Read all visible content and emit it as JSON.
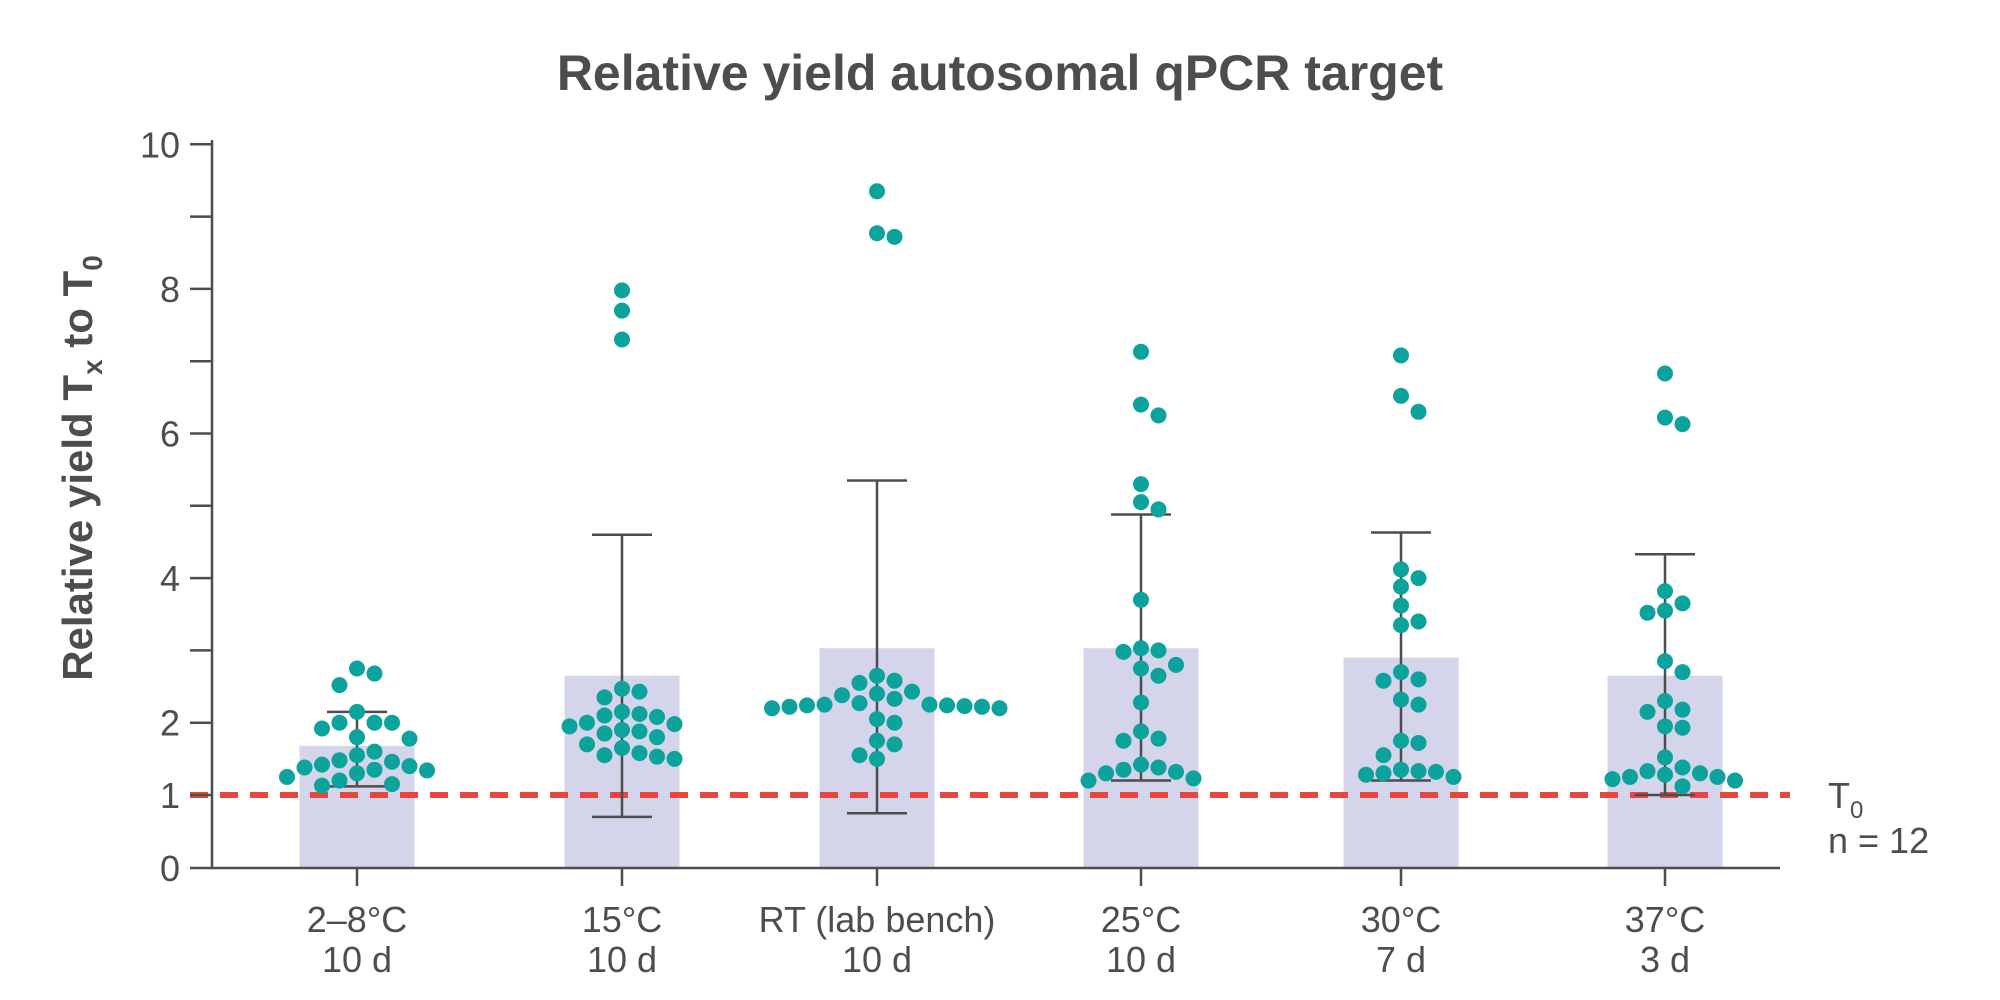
{
  "chart_data": {
    "type": "bar",
    "title": "Relative yield autosomal qPCR target",
    "ylabel": "Relative yield T",
    "ylabel_sub_x": "x",
    "ylabel_mid": " to T",
    "ylabel_sub_0": "0",
    "ylim": [
      0,
      10
    ],
    "yticks": [
      0,
      1,
      2,
      4,
      6,
      8,
      10
    ],
    "grid": false,
    "categories": [
      {
        "line1": "2–8°C",
        "line2": "10 d"
      },
      {
        "line1": "15°C",
        "line2": "10 d"
      },
      {
        "line1": "RT (lab bench)",
        "line2": "10 d"
      },
      {
        "line1": "25°C",
        "line2": "10 d"
      },
      {
        "line1": "30°C",
        "line2": "7 d"
      },
      {
        "line1": "37°C",
        "line2": "3 d"
      }
    ],
    "bar_values": [
      1.68,
      2.65,
      3.03,
      3.03,
      2.9,
      2.65
    ],
    "error_low": [
      1.12,
      0.7,
      0.75,
      1.2,
      1.2,
      1.0
    ],
    "error_high": [
      2.15,
      4.6,
      5.35,
      4.88,
      4.63,
      4.33
    ],
    "points": [
      [
        2.75,
        2.68,
        2.52,
        2.15,
        2.0,
        2.0,
        2.0,
        1.92,
        1.8,
        1.78,
        1.6,
        1.55,
        1.48,
        1.46,
        1.42,
        1.4,
        1.38,
        1.35,
        1.34,
        1.3,
        1.25,
        1.2,
        1.15,
        1.13
      ],
      [
        7.98,
        7.7,
        7.3,
        2.47,
        2.43,
        2.35,
        2.15,
        2.12,
        2.1,
        2.08,
        2.0,
        1.98,
        1.95,
        1.9,
        1.88,
        1.85,
        1.8,
        1.7,
        1.65,
        1.58,
        1.55,
        1.53,
        1.5
      ],
      [
        9.35,
        8.77,
        8.72,
        2.65,
        2.58,
        2.55,
        2.43,
        2.4,
        2.38,
        2.33,
        2.27,
        2.25,
        2.25,
        2.24,
        2.24,
        2.23,
        2.22,
        2.22,
        2.2,
        2.2,
        2.05,
        2.0,
        1.75,
        1.7,
        1.55,
        1.5
      ],
      [
        7.13,
        6.4,
        6.25,
        5.3,
        5.05,
        4.95,
        3.7,
        3.03,
        3.0,
        2.98,
        2.8,
        2.75,
        2.65,
        2.28,
        1.88,
        1.78,
        1.75,
        1.42,
        1.38,
        1.35,
        1.32,
        1.3,
        1.23,
        1.2
      ],
      [
        7.08,
        6.52,
        6.3,
        4.12,
        4.0,
        3.88,
        3.62,
        3.4,
        3.35,
        2.7,
        2.6,
        2.58,
        2.32,
        2.25,
        1.75,
        1.72,
        1.55,
        1.35,
        1.33,
        1.32,
        1.3,
        1.28,
        1.25
      ],
      [
        6.83,
        6.22,
        6.13,
        3.82,
        3.65,
        3.55,
        3.52,
        2.85,
        2.7,
        2.3,
        2.18,
        2.15,
        1.95,
        1.93,
        1.52,
        1.38,
        1.33,
        1.3,
        1.28,
        1.25,
        1.25,
        1.22,
        1.2,
        1.12
      ]
    ],
    "reference_line": {
      "value": 1,
      "label": "T",
      "label_sub": "0",
      "label2": "n = 12"
    },
    "colors": {
      "bar": "#d4d4eb",
      "point": "#0ba39b",
      "reference": "#e8453c",
      "axis": "#4d4d4f",
      "error": "#4d4d4f"
    }
  }
}
